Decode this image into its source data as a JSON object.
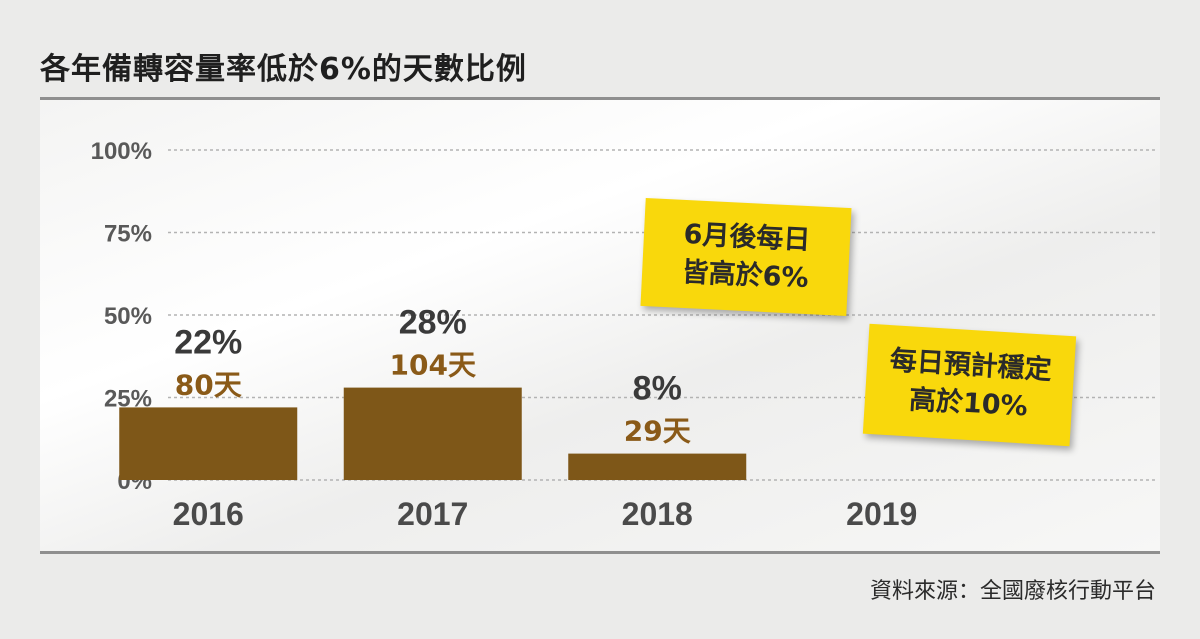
{
  "title": "各年備轉容量率低於6%的天數比例",
  "source": "資料來源：全國廢核行動平台",
  "colors": {
    "bar": "#7e5718",
    "days_label": "#8a5a18",
    "value_label": "#3a3a3a",
    "note_bg": "#f9d80c"
  },
  "notes": {
    "note_2018": {
      "lines": [
        "6月後每日",
        "皆高於6%"
      ]
    },
    "note_2019": {
      "lines": [
        "每日預計穩定",
        "高於10%"
      ]
    }
  },
  "chart_data": {
    "type": "bar",
    "title": "各年備轉容量率低於6%的天數比例",
    "xlabel": "",
    "ylabel": "",
    "categories": [
      "2016",
      "2017",
      "2018",
      "2019"
    ],
    "values": [
      22,
      28,
      8,
      null
    ],
    "value_labels": [
      "22%",
      "28%",
      "8%",
      ""
    ],
    "day_labels": [
      "80天",
      "104天",
      "29天",
      ""
    ],
    "ylim": [
      0,
      100
    ],
    "yticks": [
      0,
      25,
      50,
      75,
      100
    ],
    "ytick_labels": [
      "0%",
      "25%",
      "50%",
      "75%",
      "100%"
    ],
    "grid": true,
    "legend": "none"
  }
}
